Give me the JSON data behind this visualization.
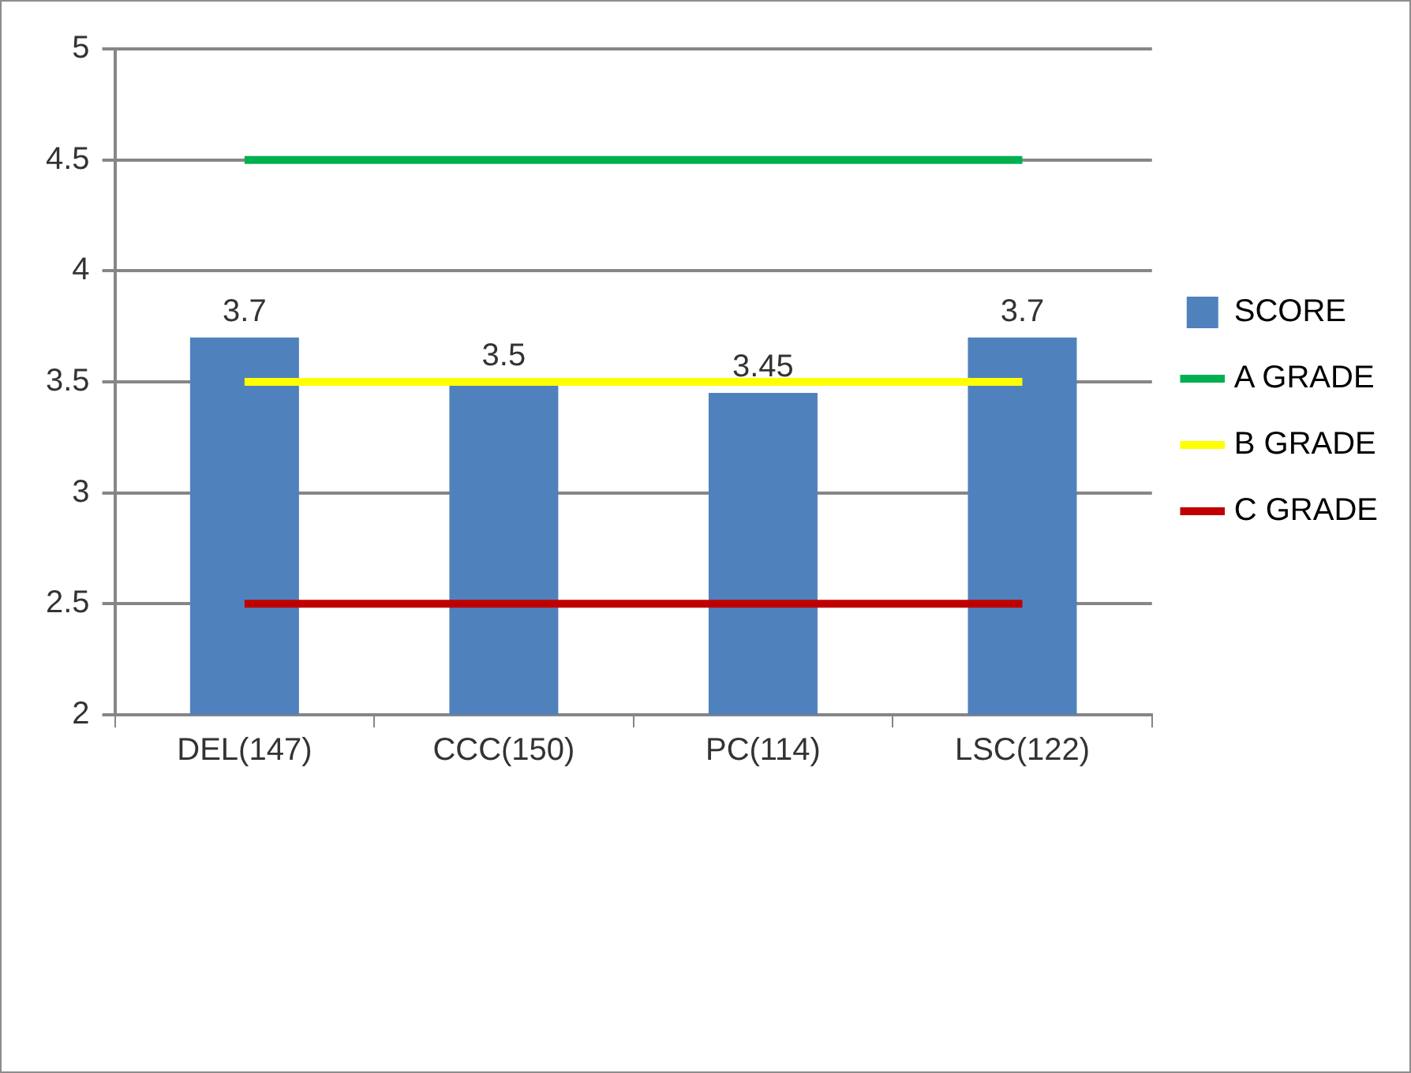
{
  "chart_data": {
    "type": "bar",
    "categories": [
      "DEL(147)",
      "CCC(150)",
      "PC(114)",
      "LSC(122)"
    ],
    "series": [
      {
        "name": "SCORE",
        "color": "#4f81bd",
        "values": [
          3.7,
          3.5,
          3.45,
          3.7
        ],
        "value_labels": [
          "3.7",
          "3.5",
          "3.45",
          "3.7"
        ]
      },
      {
        "name": "A GRADE",
        "type": "line",
        "color": "#00b050",
        "values": [
          4.5,
          4.5,
          4.5,
          4.5
        ]
      },
      {
        "name": "B GRADE",
        "type": "line",
        "color": "#ffff00",
        "values": [
          3.5,
          3.5,
          3.5,
          3.5
        ]
      },
      {
        "name": "C GRADE",
        "type": "line",
        "color": "#c00000",
        "values": [
          2.5,
          2.5,
          2.5,
          2.5
        ]
      }
    ],
    "ylim": [
      2,
      5
    ],
    "yticks": [
      2,
      2.5,
      3,
      3.5,
      4,
      4.5,
      5
    ],
    "grid": "y",
    "legend": "right",
    "marker": "none",
    "line_style": "solid"
  }
}
